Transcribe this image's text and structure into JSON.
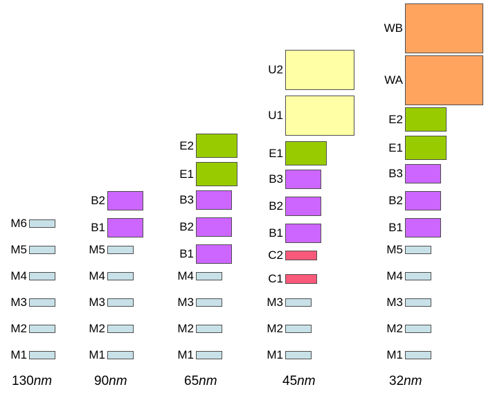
{
  "diagram": {
    "description": "Interconnect metal layer stacks by semiconductor process node",
    "type_colors": {
      "M": "#c8e1e8",
      "C": "#f9597a",
      "B": "#cc66ff",
      "E": "#99cc00",
      "U": "#ffffa6",
      "W": "#ffa45f"
    },
    "columns": [
      {
        "node": {
          "value": "130",
          "unit": "nm"
        },
        "layers": [
          {
            "name": "M1",
            "type": "M"
          },
          {
            "name": "M2",
            "type": "M"
          },
          {
            "name": "M3",
            "type": "M"
          },
          {
            "name": "M4",
            "type": "M"
          },
          {
            "name": "M5",
            "type": "M"
          },
          {
            "name": "M6",
            "type": "M"
          }
        ]
      },
      {
        "node": {
          "value": "90",
          "unit": "nm"
        },
        "layers": [
          {
            "name": "M1",
            "type": "M"
          },
          {
            "name": "M2",
            "type": "M"
          },
          {
            "name": "M3",
            "type": "M"
          },
          {
            "name": "M4",
            "type": "M"
          },
          {
            "name": "M5",
            "type": "M"
          },
          {
            "name": "B1",
            "type": "B"
          },
          {
            "name": "B2",
            "type": "B"
          }
        ]
      },
      {
        "node": {
          "value": "65",
          "unit": "nm"
        },
        "layers": [
          {
            "name": "M1",
            "type": "M"
          },
          {
            "name": "M2",
            "type": "M"
          },
          {
            "name": "M3",
            "type": "M"
          },
          {
            "name": "M4",
            "type": "M"
          },
          {
            "name": "B1",
            "type": "B"
          },
          {
            "name": "B2",
            "type": "B"
          },
          {
            "name": "B3",
            "type": "B"
          },
          {
            "name": "E1",
            "type": "E"
          },
          {
            "name": "E2",
            "type": "E"
          }
        ]
      },
      {
        "node": {
          "value": "45",
          "unit": "nm"
        },
        "layers": [
          {
            "name": "M1",
            "type": "M"
          },
          {
            "name": "M2",
            "type": "M"
          },
          {
            "name": "M3",
            "type": "M"
          },
          {
            "name": "C1",
            "type": "C"
          },
          {
            "name": "C2",
            "type": "C"
          },
          {
            "name": "B1",
            "type": "B"
          },
          {
            "name": "B2",
            "type": "B"
          },
          {
            "name": "B3",
            "type": "B"
          },
          {
            "name": "E1",
            "type": "E"
          },
          {
            "name": "U1",
            "type": "U"
          },
          {
            "name": "U2",
            "type": "U"
          }
        ]
      },
      {
        "node": {
          "value": "32",
          "unit": "nm"
        },
        "layers": [
          {
            "name": "M1",
            "type": "M"
          },
          {
            "name": "M2",
            "type": "M"
          },
          {
            "name": "M3",
            "type": "M"
          },
          {
            "name": "M4",
            "type": "M"
          },
          {
            "name": "M5",
            "type": "M"
          },
          {
            "name": "B1",
            "type": "B"
          },
          {
            "name": "B2",
            "type": "B"
          },
          {
            "name": "B3",
            "type": "B"
          },
          {
            "name": "E1",
            "type": "E"
          },
          {
            "name": "E2",
            "type": "E"
          },
          {
            "name": "WA",
            "type": "W"
          },
          {
            "name": "WB",
            "type": "W"
          }
        ]
      }
    ]
  }
}
